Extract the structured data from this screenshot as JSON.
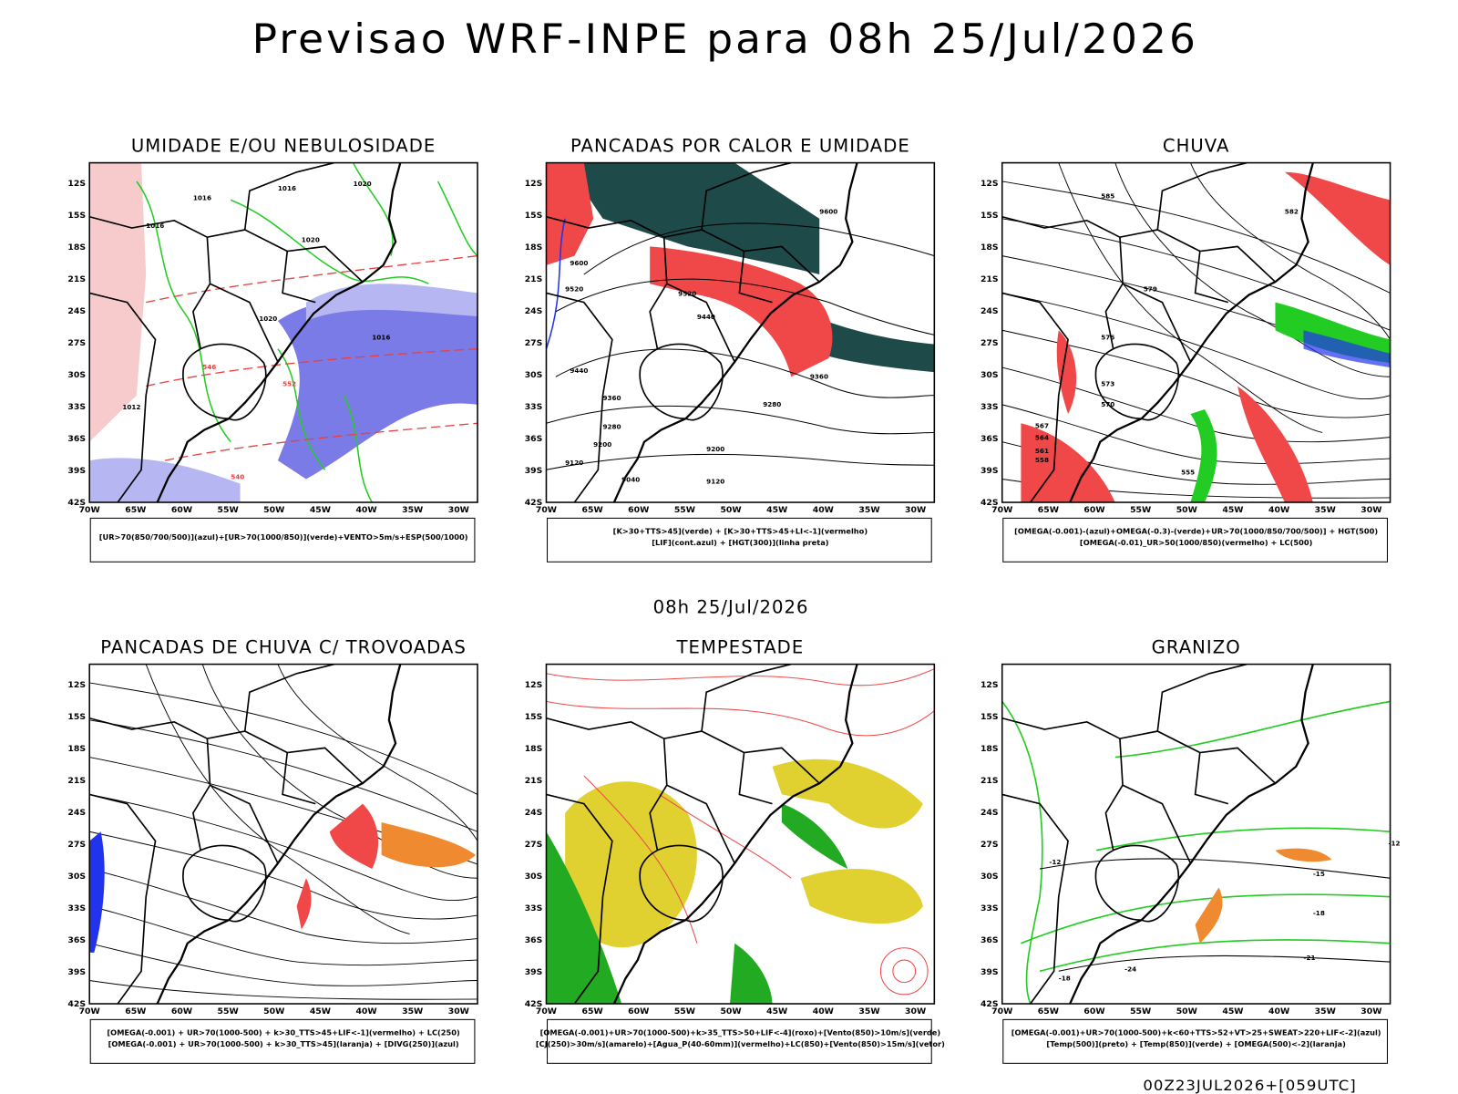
{
  "title": "Previsao WRF-INPE  para 08h 25/Jul/2026",
  "subtitle": "08h 25/Jul/2026",
  "footer": "00Z23JUL2026+[059UTC]",
  "lat_labels": [
    "12S",
    "15S",
    "18S",
    "21S",
    "24S",
    "27S",
    "30S",
    "33S",
    "36S",
    "39S",
    "42S"
  ],
  "lon_labels": [
    "70W",
    "65W",
    "60W",
    "55W",
    "50W",
    "45W",
    "40W",
    "35W",
    "30W"
  ],
  "panels": [
    {
      "title": "UMIDADE E/OU NEBULOSIDADE",
      "legend": [
        "[UR>70(850/700/500)](azul)+[UR>70(1000/850)](verde)+VENTO>5m/s+ESP(500/1000)"
      ],
      "contour_labels": [
        "1016",
        "1016",
        "1020",
        "1020",
        "1016",
        "1020",
        "1016",
        "1012",
        "546",
        "552",
        "540"
      ]
    },
    {
      "title": "PANCADAS POR CALOR E UMIDADE",
      "legend": [
        "[K>30+TTS>45](verde) + [K>30+TTS>45+LI<-1](vermelho)",
        "[LIF](cont.azul) + [HGT(300)](linha preta)"
      ],
      "contour_labels": [
        "9600",
        "9600",
        "9520",
        "9520",
        "9440",
        "9440",
        "9360",
        "9360",
        "9280",
        "9280",
        "9200",
        "9200",
        "9120",
        "9120",
        "9040"
      ]
    },
    {
      "title": "CHUVA",
      "legend": [
        "[OMEGA(-0.001)-(azul)+OMEGA(-0.3)-(verde)+UR>70(1000/850/700/500)] + HGT(500)",
        "[OMEGA(-0.01)_UR>50(1000/850)(vermelho) + LC(500)"
      ],
      "contour_labels": [
        "585",
        "582",
        "579",
        "576",
        "573",
        "570",
        "567",
        "564",
        "561",
        "558",
        "555"
      ]
    },
    {
      "title": "PANCADAS DE CHUVA C/ TROVOADAS",
      "legend": [
        "[OMEGA(-0.001) + UR>70(1000-500) + k>30_TTS>45+LIF<-1](vermelho) + LC(250)",
        "[OMEGA(-0.001) + UR>70(1000-500) + k>30_TTS>45](laranja) + [DIVG(250)](azul)"
      ],
      "contour_labels": []
    },
    {
      "title": "TEMPESTADE",
      "legend": [
        "[OMEGA(-0.001)+UR>70(1000-500)+k>35_TTS>50+LIF<-4](roxo)+[Vento(850)>10m/s](verde)",
        "[CJ(250)>30m/s](amarelo)+[Agua_P(40-60mm)](vermelho)+LC(850)+[Vento(850)>15m/s](vetor)"
      ],
      "contour_labels": []
    },
    {
      "title": "GRANIZO",
      "legend": [
        "[OMEGA(-0.001)+UR>70(1000-500)+k<60+TTS>52+VT>25+SWEAT>220+LIF<-2](azul)",
        "[Temp(500)](preto) + [Temp(850)](verde) + [OMEGA(500)<-2](laranja)"
      ],
      "contour_labels": [
        "-12",
        "-12",
        "-15",
        "-18",
        "-18",
        "-21",
        "-24"
      ]
    }
  ]
}
